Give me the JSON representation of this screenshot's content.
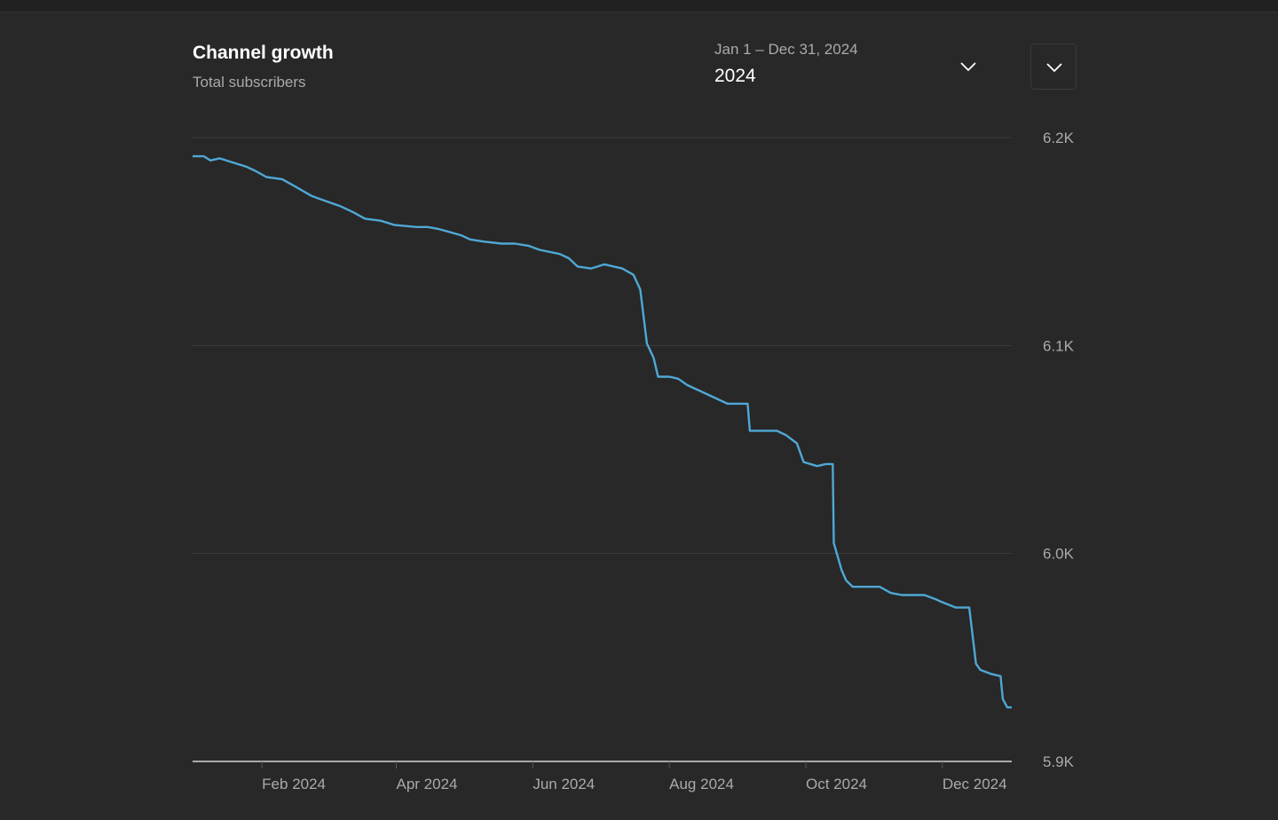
{
  "header": {
    "title": "Channel growth",
    "subtitle": "Total subscribers",
    "date_range": "Jan 1 – Dec 31, 2024",
    "period": "2024"
  },
  "colors": {
    "line": "#4fa8d5",
    "grid": "#3e3e3e",
    "axis": "#aaaaaa",
    "background": "#282828"
  },
  "chart_data": {
    "type": "line",
    "title": "Channel growth",
    "subtitle": "Total subscribers",
    "xlabel": "",
    "ylabel": "",
    "x_unit": "day of year 2024",
    "xlim": [
      0,
      366
    ],
    "ylim": [
      5900,
      6200
    ],
    "grid": true,
    "y_ticks": [
      {
        "value": 6200,
        "label": "6.2K"
      },
      {
        "value": 6100,
        "label": "6.1K"
      },
      {
        "value": 6000,
        "label": "6.0K"
      },
      {
        "value": 5900,
        "label": "5.9K"
      }
    ],
    "x_ticks": [
      {
        "value": 31,
        "label": "Feb 2024"
      },
      {
        "value": 91,
        "label": "Apr 2024"
      },
      {
        "value": 152,
        "label": "Jun 2024"
      },
      {
        "value": 213,
        "label": "Aug 2024"
      },
      {
        "value": 274,
        "label": "Oct 2024"
      },
      {
        "value": 335,
        "label": "Dec 2024"
      }
    ],
    "series": [
      {
        "name": "Total subscribers",
        "x": [
          0,
          5,
          8,
          12,
          18,
          24,
          28,
          33,
          40,
          45,
          53,
          58,
          66,
          72,
          77,
          84,
          90,
          100,
          105,
          110,
          120,
          124,
          130,
          138,
          144,
          150,
          155,
          164,
          168,
          172,
          178,
          184,
          192,
          197,
          200,
          203,
          206,
          208,
          213,
          217,
          221,
          227,
          233,
          239,
          243,
          248,
          249,
          255,
          261,
          265,
          270,
          273,
          279,
          283,
          286,
          286.5,
          290,
          292,
          295,
          300,
          307,
          312,
          317,
          322,
          327,
          332,
          334,
          341,
          344,
          347,
          350,
          352,
          357,
          361,
          362,
          364,
          366
        ],
        "values": [
          6191,
          6191,
          6189,
          6190,
          6188,
          6186,
          6184,
          6181,
          6180,
          6177,
          6172,
          6170,
          6167,
          6164,
          6161,
          6160,
          6158,
          6157,
          6157,
          6156,
          6153,
          6151,
          6150,
          6149,
          6149,
          6148,
          6146,
          6144,
          6142,
          6138,
          6137,
          6139,
          6137,
          6134,
          6127,
          6101,
          6094,
          6085,
          6085,
          6084,
          6081,
          6078,
          6075,
          6072,
          6072,
          6072,
          6059,
          6059,
          6059,
          6057,
          6053,
          6044,
          6042,
          6043,
          6043,
          6005,
          5992,
          5987,
          5984,
          5984,
          5984,
          5981,
          5980,
          5980,
          5980,
          5978,
          5977,
          5974,
          5974,
          5974,
          5947,
          5944,
          5942,
          5941,
          5930,
          5926,
          5926
        ]
      }
    ]
  }
}
